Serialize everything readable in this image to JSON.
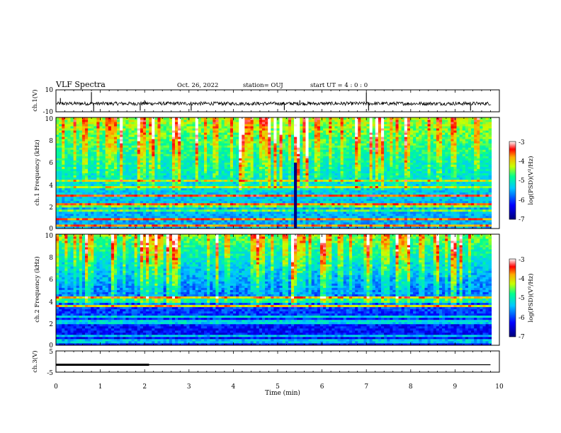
{
  "header": {
    "title": "VLF Spectra",
    "date": "Oct. 26, 2022",
    "station": "station= OUJ",
    "start_ut": "start  UT =   4 : 0  : 0"
  },
  "colors": {
    "colormap": [
      "#00007a",
      "#0000ff",
      "#00c8ff",
      "#00ff90",
      "#c8ff00",
      "#ffaa00",
      "#ff0000",
      "#ffffff"
    ],
    "trace": "#000000"
  },
  "chart_data": [
    {
      "type": "line",
      "name": "ch1-waveform",
      "ylabel": "ch.1(V)",
      "ylim": [
        -10,
        10
      ],
      "ytick_labels": [
        "10",
        "-10"
      ],
      "xlim": [
        0,
        10
      ],
      "baseline": -2.5,
      "x": [
        0,
        0.1,
        0.8,
        0.85,
        1.9,
        2.0,
        3.05,
        5.15,
        5.5,
        7.0,
        7.05,
        9.35,
        9.8
      ],
      "y": [
        -2.5,
        2.5,
        8.0,
        -9.5,
        -9.0,
        0.5,
        -9.0,
        -8.5,
        0.5,
        7.5,
        -9.0,
        -9.0,
        -2.5
      ]
    },
    {
      "type": "heatmap",
      "name": "ch1-spectrogram",
      "ylabel": "ch.1 Frequency (kHz)",
      "ylim": [
        0,
        10
      ],
      "ytick_labels": [
        "0",
        "2",
        "4",
        "6",
        "8",
        "10"
      ],
      "xlim": [
        0,
        10
      ],
      "colorbar": {
        "label": "log(PSD)(V²/Hz)",
        "range": [
          -7,
          -3
        ],
        "tick_labels": [
          "-3",
          "-4",
          "-5",
          "-6",
          "-7"
        ]
      },
      "features": {
        "background_log_psd": -5.5,
        "upper_band_log_psd": -4.3,
        "dark_burst": {
          "t": [
            5.35,
            5.45
          ],
          "f": [
            0,
            6
          ],
          "log_psd": -7
        }
      }
    },
    {
      "type": "heatmap",
      "name": "ch2-spectrogram",
      "ylabel": "ch.2 Frequency (kHz)",
      "ylim": [
        0,
        10
      ],
      "ytick_labels": [
        "0",
        "2",
        "4",
        "6",
        "8",
        "10"
      ],
      "xlim": [
        0,
        10
      ],
      "colorbar": {
        "label": "log(PSD)(V²/Hz)",
        "range": [
          -7,
          -3
        ],
        "tick_labels": [
          "-3",
          "-4",
          "-5",
          "-6",
          "-7"
        ]
      },
      "features": {
        "background_log_psd": -6.3,
        "upper_band_log_psd": -4.5
      }
    },
    {
      "type": "line",
      "name": "ch3-trace",
      "ylabel": "ch.3(V)",
      "ylim": [
        -5,
        5
      ],
      "ytick_labels": [
        "5",
        "-5"
      ],
      "xlim": [
        0,
        10
      ],
      "x": [
        0,
        9.8
      ],
      "y": [
        -1.5,
        -1.5
      ],
      "thick_segment_x": [
        0,
        2.1
      ],
      "xlabel": "Time (min)",
      "xtick_labels": [
        "0",
        "1",
        "2",
        "3",
        "4",
        "5",
        "6",
        "7",
        "8",
        "9",
        "10"
      ]
    }
  ]
}
